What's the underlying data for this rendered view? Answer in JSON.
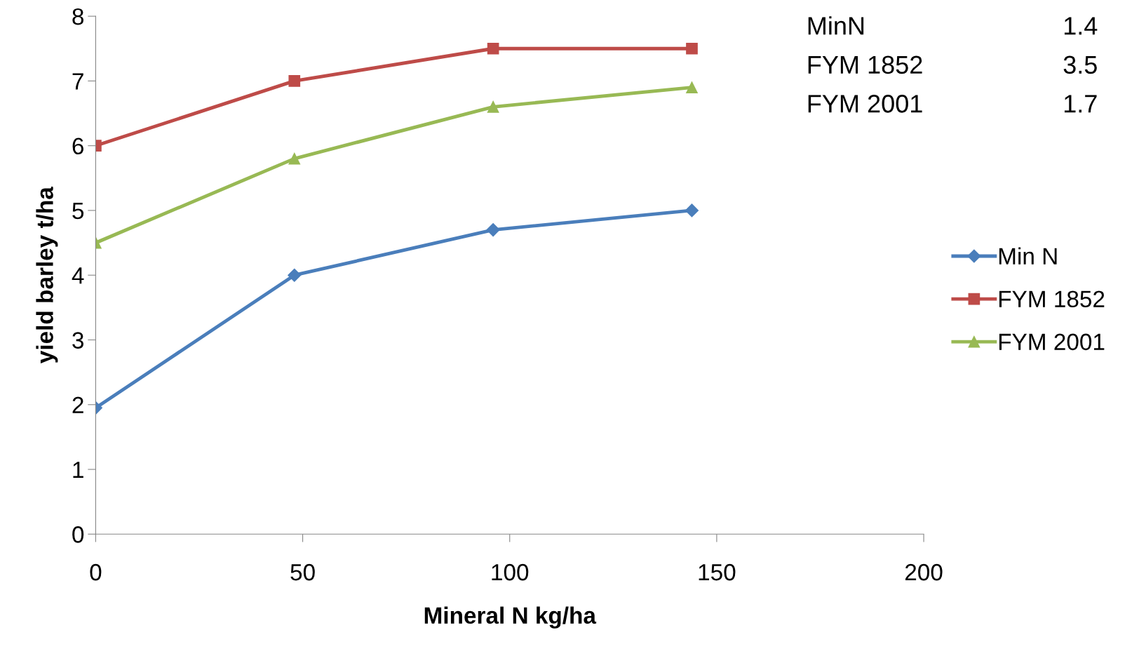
{
  "chart_data": {
    "type": "line",
    "xlabel": "Mineral N kg/ha",
    "ylabel": "yield barley t/ha",
    "x": [
      0,
      48,
      96,
      144
    ],
    "series": [
      {
        "name": "Min N",
        "color": "#4a7ebb",
        "marker": "diamond",
        "values": [
          1.95,
          4.0,
          4.7,
          5.0
        ]
      },
      {
        "name": "FYM 1852",
        "color": "#be4b48",
        "marker": "square",
        "values": [
          6.0,
          7.0,
          7.5,
          7.5
        ]
      },
      {
        "name": "FYM 2001",
        "color": "#98b954",
        "marker": "triangle",
        "values": [
          4.5,
          5.8,
          6.6,
          6.9
        ]
      }
    ],
    "xlim": [
      0,
      200
    ],
    "xticks": [
      0,
      50,
      100,
      150,
      200
    ],
    "ylim": [
      0,
      8
    ],
    "yticks": [
      0,
      1,
      2,
      3,
      4,
      5,
      6,
      7,
      8
    ],
    "grid": false,
    "legend": "right",
    "line_style": "solid",
    "annotations": [
      "MinN",
      "1.4",
      "FYM 1852",
      "3.5",
      "FYM 2001",
      "1.7"
    ]
  }
}
